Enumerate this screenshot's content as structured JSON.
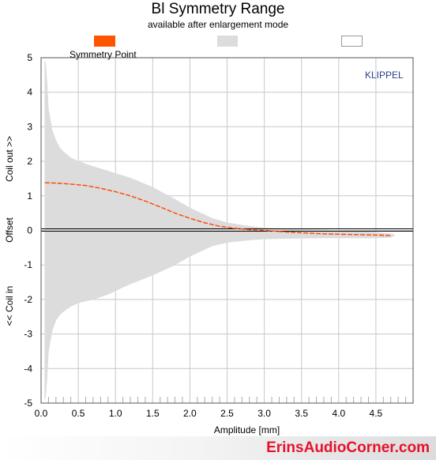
{
  "chart_data": {
    "type": "area",
    "title": "Bl Symmetry Range",
    "subtitle": "available after enlargement mode",
    "xlabel": "Amplitude [mm]",
    "ylabel_top": "Coil out >>",
    "ylabel_mid": "Offset",
    "ylabel_bottom": "<< Coil in",
    "xlim": [
      0,
      5
    ],
    "ylim": [
      -5,
      5
    ],
    "x_ticks": [
      "0.0",
      "0.5",
      "1.0",
      "1.5",
      "2.0",
      "2.5",
      "3.0",
      "3.5",
      "4.0",
      "4.5"
    ],
    "y_ticks": [
      "5",
      "4",
      "3",
      "2",
      "1",
      "0",
      "-1",
      "-2",
      "-3",
      "-4",
      "-5"
    ],
    "grid": true,
    "legend": [
      {
        "name": "Symmetry Point",
        "color": "#ff5500",
        "border": "#ff5500"
      },
      {
        "name": "",
        "color": "#dcdcdc",
        "border": "#dcdcdc"
      },
      {
        "name": "",
        "color": "#ffffff",
        "border": "#999999"
      }
    ],
    "symmetry_range_upper": {
      "x": [
        0.05,
        0.06,
        0.08,
        0.1,
        0.15,
        0.2,
        0.25,
        0.3,
        0.4,
        0.5,
        0.7,
        0.9,
        1.0,
        1.2,
        1.5,
        1.8,
        2.0,
        2.3,
        2.5,
        2.8,
        3.0,
        3.2,
        3.5,
        3.8,
        4.0,
        4.3,
        4.5,
        4.7,
        4.75
      ],
      "y": [
        4.9,
        4.85,
        4.3,
        3.5,
        2.9,
        2.6,
        2.4,
        2.28,
        2.1,
        2.0,
        1.85,
        1.72,
        1.65,
        1.52,
        1.25,
        0.9,
        0.65,
        0.35,
        0.22,
        0.12,
        0.07,
        0.05,
        0.03,
        0.02,
        0.0,
        -0.03,
        -0.06,
        -0.1,
        -0.12
      ]
    },
    "symmetry_range_lower": {
      "x": [
        0.05,
        0.06,
        0.08,
        0.1,
        0.15,
        0.2,
        0.25,
        0.3,
        0.4,
        0.5,
        0.7,
        0.9,
        1.0,
        1.2,
        1.5,
        1.8,
        2.0,
        2.3,
        2.5,
        2.8,
        3.0,
        3.2,
        3.5,
        3.8,
        4.0,
        4.3,
        4.5,
        4.7,
        4.75
      ],
      "y": [
        -4.9,
        -4.85,
        -4.3,
        -3.5,
        -2.9,
        -2.6,
        -2.45,
        -2.35,
        -2.2,
        -2.1,
        -2.0,
        -1.85,
        -1.75,
        -1.55,
        -1.3,
        -1.0,
        -0.75,
        -0.45,
        -0.35,
        -0.28,
        -0.25,
        -0.24,
        -0.23,
        -0.22,
        -0.22,
        -0.22,
        -0.22,
        -0.2,
        -0.15
      ]
    },
    "symmetry_point": {
      "x": [
        0.05,
        0.2,
        0.4,
        0.6,
        0.8,
        1.0,
        1.2,
        1.4,
        1.6,
        1.8,
        2.0,
        2.2,
        2.4,
        2.6,
        2.8,
        3.0,
        3.2,
        3.4,
        3.6,
        3.8,
        4.0,
        4.2,
        4.4,
        4.6,
        4.7
      ],
      "y": [
        1.38,
        1.37,
        1.34,
        1.3,
        1.22,
        1.12,
        1.0,
        0.85,
        0.68,
        0.5,
        0.35,
        0.22,
        0.12,
        0.06,
        0.02,
        0.0,
        -0.03,
        -0.06,
        -0.08,
        -0.1,
        -0.11,
        -0.12,
        -0.13,
        -0.14,
        -0.15
      ]
    },
    "watermark": "KLIPPEL"
  },
  "footer": {
    "brand": "ErinsAudioCorner.com"
  }
}
